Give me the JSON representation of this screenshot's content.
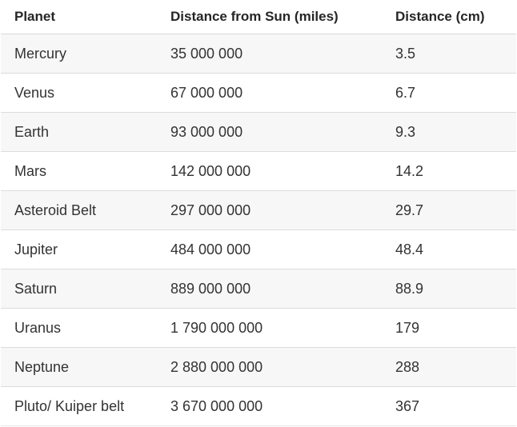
{
  "table": {
    "headers": [
      "Planet",
      "Distance from Sun (miles)",
      "Distance (cm)"
    ],
    "rows": [
      [
        "Mercury",
        "35 000 000",
        "3.5"
      ],
      [
        "Venus",
        "67 000 000",
        "6.7"
      ],
      [
        "Earth",
        "93 000 000",
        "9.3"
      ],
      [
        "Mars",
        "142 000 000",
        "14.2"
      ],
      [
        "Asteroid Belt",
        "297 000 000",
        "29.7"
      ],
      [
        "Jupiter",
        "484 000 000",
        "48.4"
      ],
      [
        "Saturn",
        "889 000 000",
        "88.9"
      ],
      [
        "Uranus",
        "1 790 000 000",
        "179"
      ],
      [
        "Neptune",
        "2 880 000 000",
        "288"
      ],
      [
        "Pluto/ Kuiper belt",
        "3 670 000 000",
        "367"
      ]
    ]
  }
}
